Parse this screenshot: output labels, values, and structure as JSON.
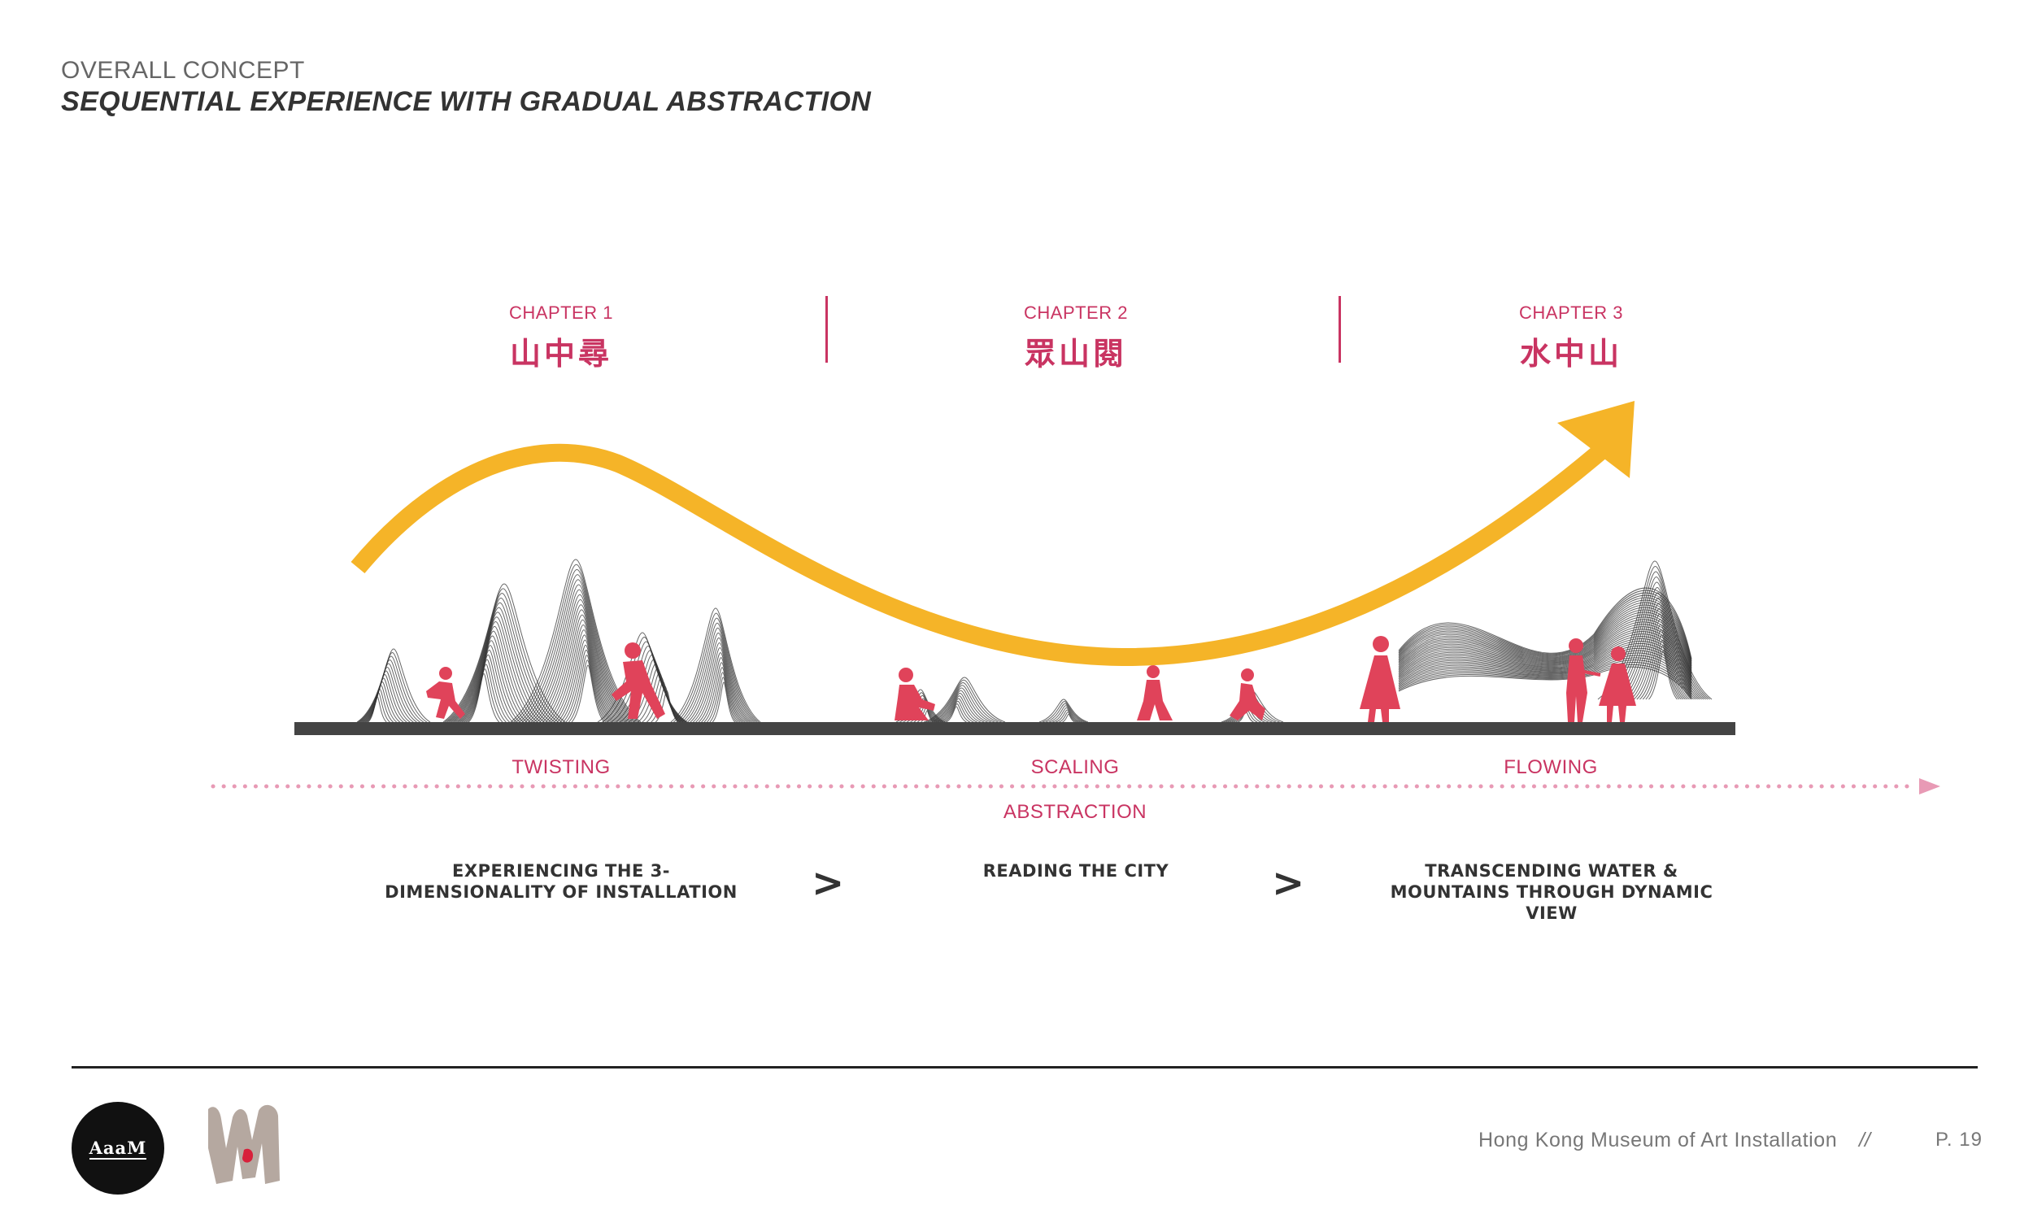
{
  "header": {
    "kicker": "OVERALL CONCEPT",
    "title": "SEQUENTIAL EXPERIENCE WITH GRADUAL ABSTRACTION"
  },
  "chapters": [
    {
      "label": "CHAPTER 1",
      "title": "山中尋"
    },
    {
      "label": "CHAPTER 2",
      "title": "眾山閱"
    },
    {
      "label": "CHAPTER 3",
      "title": "水中山"
    }
  ],
  "phases": [
    "TWISTING",
    "SCALING",
    "FLOWING"
  ],
  "axis_label": "ABSTRACTION",
  "descriptions": [
    "EXPERIENCING THE 3-DIMENSIONALITY OF INSTALLATION",
    "READING THE CITY",
    "TRANSCENDING WATER & MOUNTAINS THROUGH DYNAMIC VIEW"
  ],
  "separator_glyph": ">",
  "footer": {
    "project": "Hong Kong Museum of Art Installation",
    "separator": "//",
    "page": "P. 19",
    "logo_text": "AaaM"
  },
  "colors": {
    "accent": "#c93462",
    "figure": "#e0435a",
    "curve": "#f5b428",
    "ground": "#444444",
    "mesh": "#333333",
    "dotted": "#e89ab5"
  },
  "icons": {
    "curve_arrow": "arrow-right-icon",
    "figures": "person-silhouette-icon"
  }
}
